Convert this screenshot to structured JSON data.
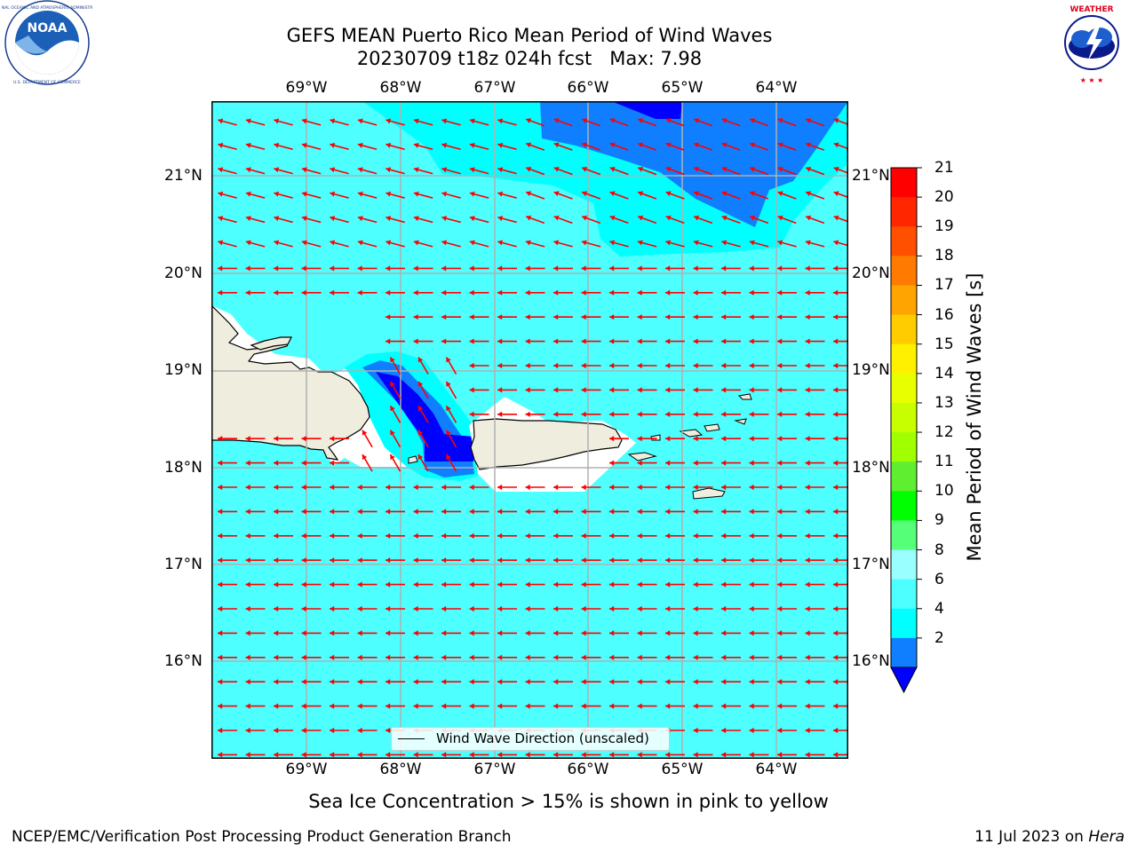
{
  "header": {
    "title_line1": "GEFS MEAN Puerto Rico Mean Period of Wind Waves",
    "title_line2": "20230709 t18z 024h fcst   Max: 7.98"
  },
  "logos": {
    "left": {
      "name": "noaa-logo",
      "text": "NOAA",
      "ring_text": "NATIONAL OCEANIC AND ATMOSPHERIC ADMINISTRATION · U.S. DEPARTMENT OF COMMERCE"
    },
    "right": {
      "name": "nws-logo",
      "ring_text": "NATIONAL WEATHER SERVICE"
    }
  },
  "map": {
    "lon_labels": [
      "69°W",
      "68°W",
      "67°W",
      "66°W",
      "65°W",
      "64°W"
    ],
    "lat_labels": [
      "21°N",
      "20°N",
      "19°N",
      "18°N",
      "17°N",
      "16°N"
    ],
    "legend": {
      "label": "Wind Wave Direction (unscaled)"
    },
    "colors": {
      "ocean_main": "#4dffff",
      "ocean_light": "#00ffff",
      "band_2_4": "#0f7fff",
      "below_2": "#0000ff",
      "land": "#efedde",
      "arrow": "#ff0000",
      "grid": "#b0b0b0"
    }
  },
  "colorbar": {
    "label": "Mean Period of Wind Waves [s]",
    "ticks": [
      "21",
      "20",
      "19",
      "18",
      "17",
      "16",
      "15",
      "14",
      "13",
      "12",
      "11",
      "10",
      "9",
      "8",
      "6",
      "4",
      "2"
    ],
    "colors": [
      "#ff0000",
      "#ff2600",
      "#ff5000",
      "#ff7a00",
      "#ffa400",
      "#ffcc00",
      "#fff000",
      "#e8ff00",
      "#c8ff00",
      "#a0ff00",
      "#60ee30",
      "#00ff00",
      "#55ff77",
      "#99ffff",
      "#4dffff",
      "#00ffff",
      "#0f7fff"
    ],
    "extend_color": "#0000ff"
  },
  "footer": {
    "sea_ice_note": "Sea Ice Concentration > 15% is shown in pink to yellow",
    "credit": "NCEP/EMC/Verification Post Processing Product Generation Branch",
    "date": "11 Jul 2023 on",
    "machine": "Hera"
  }
}
